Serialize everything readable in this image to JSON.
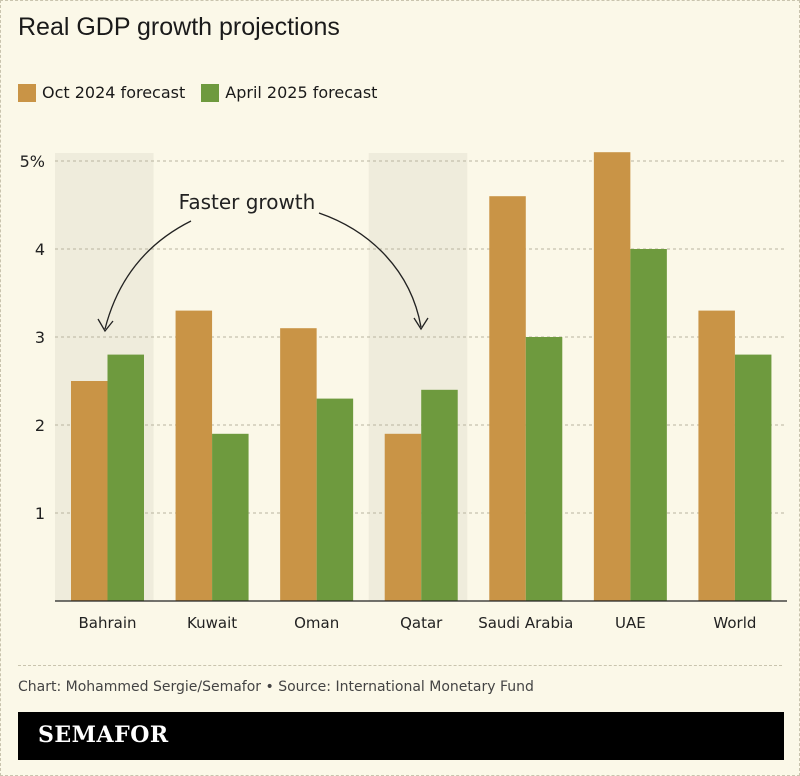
{
  "title": "Real GDP growth projections",
  "source": "Chart: Mohammed Sergie/Semafor • Source: International Monetary Fund",
  "logo": "SEMAFOR",
  "colors": {
    "oct": "#c99446",
    "april": "#6e9a3e",
    "highlight": "#efecdc",
    "background": "#fbf8e8"
  },
  "chart_data": {
    "type": "bar",
    "title": "Real GDP growth projections",
    "categories": [
      "Bahrain",
      "Kuwait",
      "Oman",
      "Qatar",
      "Saudi Arabia",
      "UAE",
      "World"
    ],
    "series": [
      {
        "name": "Oct 2024 forecast",
        "values": [
          2.5,
          3.3,
          3.1,
          1.9,
          4.6,
          5.1,
          3.3
        ]
      },
      {
        "name": "April 2025 forecast",
        "values": [
          2.8,
          1.9,
          2.3,
          2.4,
          3.0,
          4.0,
          2.8
        ]
      }
    ],
    "ylim": [
      0,
      5
    ],
    "yticks": [
      {
        "v": 1,
        "label": "1"
      },
      {
        "v": 2,
        "label": "2"
      },
      {
        "v": 3,
        "label": "3"
      },
      {
        "v": 4,
        "label": "4"
      },
      {
        "v": 5,
        "label": "5%"
      }
    ],
    "grid": true,
    "legend": "top-left",
    "highlighted": [
      "Bahrain",
      "Qatar"
    ],
    "annotation": "Faster growth"
  }
}
